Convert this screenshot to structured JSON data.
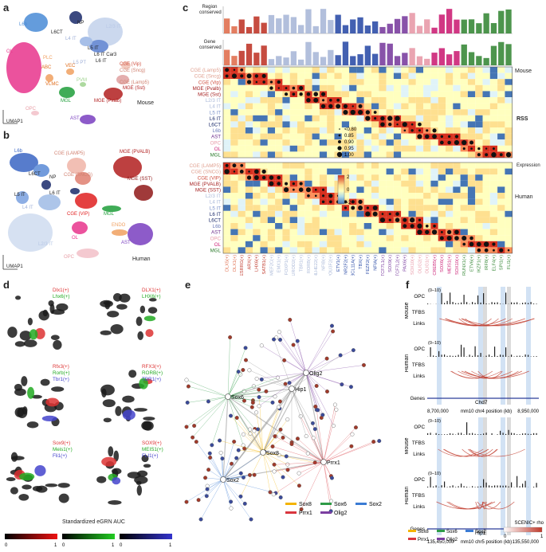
{
  "panel_labels": {
    "a": "a",
    "b": "b",
    "c": "c",
    "d": "d",
    "e": "e",
    "f": "f"
  },
  "umap": {
    "axis_y": "UMAP2",
    "axis_x": "UMAP1"
  },
  "panel_a": {
    "species": "Mouse",
    "labels": {
      "NP": "NP",
      "L6b": "L6b",
      "L6CT": "L6CT",
      "L4IT": "L4 IT",
      "L23IT": "L2/3 IT",
      "L5IT": "L5 IT",
      "L6ITCar3": "L6 IT Car3",
      "L6IT": "L6 IT",
      "L5PT": "L5 PT",
      "OL": "OL",
      "ABC": "ABC",
      "VLMC": "VLMC",
      "VEC": "VEC",
      "PVM": "PVM",
      "MGL": "MGL",
      "CGEVip": "CGE (Vip)",
      "CGESncg": "CGE (Sncg)",
      "CGELamp5": "CGE (Lamp5)",
      "MGEPvalb": "MGE (Pvalb)",
      "MGESst": "MGE (Sst)",
      "OPC": "OPC",
      "AST": "AST",
      "PLC": "PLC"
    }
  },
  "panel_b": {
    "species": "Human",
    "labels": {
      "L6b": "L6b",
      "L6CT": "L6CT",
      "NP": "NP",
      "L5IT": "L5 IT",
      "L6IT": "L6 IT",
      "L4IT": "L4 IT",
      "L23IT": "L2/3 IT",
      "CGELAMP5": "CGE (LAMP5)",
      "CGESNCG": "CGE (SNCG)",
      "CGEVIP": "CGE (VIP)",
      "MGEPVALB": "MGE (PVALB)",
      "MGESST": "MGE (SST)",
      "MGL": "MGL",
      "ENDO": "ENDO",
      "OL": "OL",
      "AST": "AST",
      "OPC": "OPC"
    }
  },
  "panel_c": {
    "row_axis_top": "Region\nconserved",
    "row_axis_gene": "Gene\nconserved",
    "side_mouse": "Mouse",
    "side_human": "Human",
    "rows_mouse": [
      "CGE (Lamp5)",
      "CGE (Sncg)",
      "CGE (Vip)",
      "MGE (Pvalb)",
      "MGE (Sst)",
      "L2/3 IT",
      "L4 IT",
      "L5 IT",
      "L6 IT",
      "L6CT",
      "L6b",
      "AST",
      "OPC",
      "OL",
      "MGL"
    ],
    "rows_human": [
      "CGE (LAMP5)",
      "CGE (SNCG)",
      "CGE (VIP)",
      "MGE (PVALB)",
      "MGE (SST)",
      "L2/3 IT",
      "L4 IT",
      "L5 IT",
      "L6 IT",
      "L6CT",
      "L6b",
      "AST",
      "OPC",
      "OL",
      "MGL"
    ],
    "columns": [
      "DLX5(+)",
      "DLX1(+)",
      "ESRRG(+)",
      "ARX(+)",
      "LHX6(+)",
      "SATB1(+)",
      "MEF2C(+)",
      "EMX1(+)",
      "FOXP1(+)",
      "NEUROD2(+)",
      "TBR1(+)",
      "RORB(+)",
      "BHLHE22(+)",
      "NFIB(+)",
      "POU3F2(+)",
      "ETV1(+)",
      "NR2F2(+)",
      "BCL11A(+)",
      "TBX(+)",
      "FEZF2(+)",
      "NFIA(+)",
      "TCF7L1(+)",
      "SOX9(+)",
      "TCF7L2(+)",
      "PAX6(+)",
      "SOX10(+)",
      "OLIG2(+)",
      "OLIG1(+)",
      "CREB5(+)",
      "SOX6(+)",
      "MEIS1(+)",
      "SOX10(+)",
      "RUNX1(+)",
      "ETV6(+)",
      "IKZF1(+)",
      "IRF8(+)",
      "ELF4(+)",
      "SPI1(+)",
      "FLI1(+)"
    ],
    "col_colors": [
      "#e07050",
      "#e07050",
      "#c0392b",
      "#c0392b",
      "#c0392b",
      "#c0392b",
      "#aab8d8",
      "#aab8d8",
      "#aab8d8",
      "#aab8d8",
      "#aab8d8",
      "#aab8d8",
      "#aab8d8",
      "#aab8d8",
      "#aab8d8",
      "#2f4fa8",
      "#2f4fa8",
      "#2f4fa8",
      "#2f4fa8",
      "#2f4fa8",
      "#2f4fa8",
      "#7b3fa0",
      "#7b3fa0",
      "#7b3fa0",
      "#7b3fa0",
      "#e89aa8",
      "#e89aa8",
      "#e89aa8",
      "#cc2277",
      "#cc2277",
      "#cc2277",
      "#cc2277",
      "#3a8a3a",
      "#3a8a3a",
      "#3a8a3a",
      "#3a8a3a",
      "#3a8a3a",
      "#3a8a3a",
      "#3a8a3a"
    ],
    "row_colors_mouse": [
      "#e0a090",
      "#e0a090",
      "#d05040",
      "#a52020",
      "#a52020",
      "#aab8d8",
      "#aab8d8",
      "#7a90c8",
      "#1a2a6a",
      "#1a2a6a",
      "#6a7ab8",
      "#6a2a8a",
      "#e89aa8",
      "#cc2277",
      "#2a7a2a"
    ],
    "rss_title": "RSS",
    "rss_levels": [
      "<0.80",
      "0.85",
      "0.90",
      "0.95",
      "1.00"
    ],
    "expr_title": "Expression",
    "expr_ticks": [
      "2",
      "0",
      "-2"
    ]
  },
  "panel_d": {
    "rows": [
      {
        "left": [
          "Dlx1(+)",
          "Lhx6(+)"
        ],
        "right": [
          "DLX1(+)",
          "LHX6(+)"
        ]
      },
      {
        "left": [
          "Rfx3(+)",
          "Rorb(+)",
          "Tbr1(+)"
        ],
        "right": [
          "RFX3(+)",
          "RORB(+)",
          "TBR1(+)"
        ]
      },
      {
        "left": [
          "Sox9(+)",
          "Meis1(+)",
          "Fli1(+)"
        ],
        "right": [
          "SOX9(+)",
          "MEIS1(+)",
          "FLI1(+)"
        ]
      }
    ],
    "auc_title": "Standardized eGRN AUC",
    "bar_ticks": [
      "0",
      "1",
      "0",
      "1",
      "0",
      "1"
    ]
  },
  "panel_e": {
    "hubs": {
      "sox6": "Sox6",
      "sox8": "Sox8",
      "sox2": "Sox2",
      "prrx1": "Prrx1",
      "olig2": "Olig2",
      "hip1": "Hip1"
    },
    "legend": [
      {
        "name": "Sox8",
        "color": "#f4b400"
      },
      {
        "name": "Sox6",
        "color": "#2e9b47"
      },
      {
        "name": "Sox2",
        "color": "#3b7bd4"
      },
      {
        "name": "Prrx1",
        "color": "#d9363e"
      },
      {
        "name": "Olig2",
        "color": "#7b3fa0"
      }
    ]
  },
  "panel_f": {
    "track_range": "(0–10)",
    "track_names": [
      "OPC",
      "TFBS",
      "Links",
      "OPC",
      "TFBS",
      "Links",
      "Genes"
    ],
    "gene_top": "Chd7",
    "gene_bottom": "Hip1",
    "axis_top": [
      "8,700,000",
      "mm10 chr4 position (kb)",
      "8,950,000"
    ],
    "axis_bottom": [
      "135,450,000",
      "mm10 chr5 position (kb)",
      "135,550,000"
    ],
    "species": [
      "Mouse",
      "Human",
      "Mouse",
      "Human"
    ],
    "legend": [
      {
        "name": "Sox8",
        "color": "#f4b400"
      },
      {
        "name": "Sox6",
        "color": "#2e9b47"
      },
      {
        "name": "Sox2",
        "color": "#3b7bd4"
      },
      {
        "name": "Prrx1",
        "color": "#d9363e"
      },
      {
        "name": "Olig2",
        "color": "#7b3fa0"
      }
    ],
    "rho_title": "SCENIC+ rho",
    "rho_ticks": [
      "0",
      "1"
    ]
  }
}
